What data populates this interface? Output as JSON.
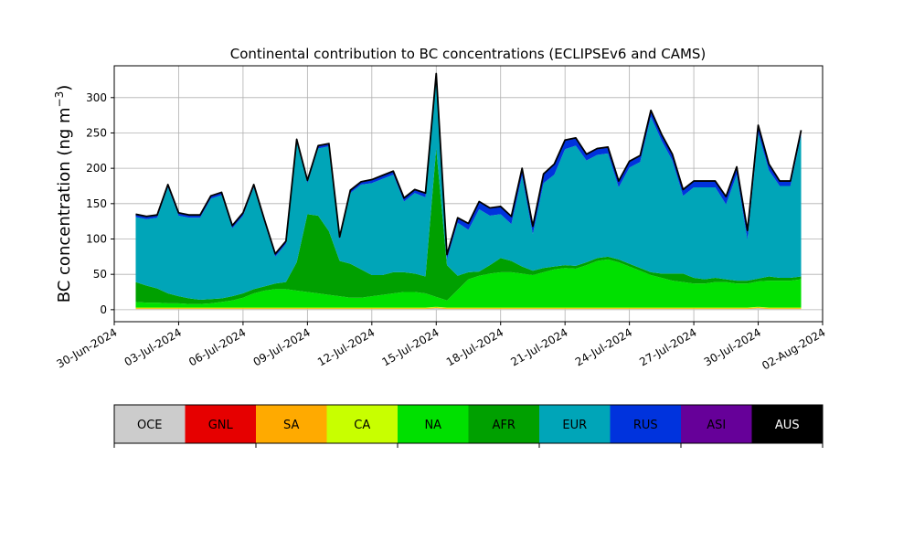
{
  "chart_data": {
    "type": "area",
    "stacked": true,
    "title": "Continental contribution to BC concentrations (ECLIPSEv6 and CAMS)",
    "ylabel": "BC concentration (ng m",
    "ylabel_sup": "−3",
    "ylabel_close": ")",
    "xlabel": "",
    "grid": true,
    "ylim": [
      -17,
      345
    ],
    "xlim": [
      "2024-06-30",
      "2024-08-02"
    ],
    "yticks": [
      0,
      50,
      100,
      150,
      200,
      250,
      300
    ],
    "ytick_labels": [
      "0",
      "50",
      "100",
      "150",
      "200",
      "250",
      "300"
    ],
    "xticks": [
      "2024-06-30",
      "2024-07-03",
      "2024-07-06",
      "2024-07-09",
      "2024-07-12",
      "2024-07-15",
      "2024-07-18",
      "2024-07-21",
      "2024-07-24",
      "2024-07-27",
      "2024-07-30",
      "2024-08-02"
    ],
    "xtick_labels": [
      "30-Jun-2024",
      "03-Jul-2024",
      "06-Jul-2024",
      "09-Jul-2024",
      "12-Jul-2024",
      "15-Jul-2024",
      "18-Jul-2024",
      "21-Jul-2024",
      "24-Jul-2024",
      "27-Jul-2024",
      "30-Jul-2024",
      "02-Aug-2024"
    ],
    "x": [
      "2024-07-01",
      "2024-07-01T12:00",
      "2024-07-02",
      "2024-07-02T12:00",
      "2024-07-03",
      "2024-07-03T12:00",
      "2024-07-04",
      "2024-07-04T12:00",
      "2024-07-05",
      "2024-07-05T12:00",
      "2024-07-06",
      "2024-07-06T12:00",
      "2024-07-07",
      "2024-07-07T12:00",
      "2024-07-08",
      "2024-07-08T12:00",
      "2024-07-09",
      "2024-07-09T12:00",
      "2024-07-10",
      "2024-07-10T12:00",
      "2024-07-11",
      "2024-07-11T12:00",
      "2024-07-12",
      "2024-07-12T12:00",
      "2024-07-13",
      "2024-07-13T12:00",
      "2024-07-14",
      "2024-07-14T12:00",
      "2024-07-15",
      "2024-07-15T12:00",
      "2024-07-16",
      "2024-07-16T12:00",
      "2024-07-17",
      "2024-07-17T12:00",
      "2024-07-18",
      "2024-07-18T12:00",
      "2024-07-19",
      "2024-07-19T12:00",
      "2024-07-20",
      "2024-07-20T12:00",
      "2024-07-21",
      "2024-07-21T12:00",
      "2024-07-22",
      "2024-07-22T12:00",
      "2024-07-23",
      "2024-07-23T12:00",
      "2024-07-24",
      "2024-07-24T12:00",
      "2024-07-25",
      "2024-07-25T12:00",
      "2024-07-26",
      "2024-07-26T12:00",
      "2024-07-27",
      "2024-07-27T12:00",
      "2024-07-28",
      "2024-07-28T12:00",
      "2024-07-29",
      "2024-07-29T12:00",
      "2024-07-30",
      "2024-07-30T12:00",
      "2024-07-31",
      "2024-07-31T12:00",
      "2024-08-01"
    ],
    "series": [
      {
        "name": "OCE",
        "color": "#cccccc",
        "values": [
          1,
          1,
          1,
          1,
          1,
          1,
          1,
          1,
          1,
          1,
          1,
          1,
          1,
          1,
          1,
          1,
          1,
          1,
          1,
          1,
          1,
          1,
          1,
          1,
          1,
          1,
          1,
          1,
          2,
          1,
          1,
          1,
          1,
          1,
          1,
          1,
          1,
          1,
          1,
          1,
          1,
          1,
          1,
          1,
          1,
          1,
          1,
          1,
          1,
          1,
          1,
          1,
          1,
          1,
          1,
          1,
          1,
          1,
          2,
          1,
          1,
          1,
          1
        ]
      },
      {
        "name": "GNL",
        "color": "#e60000",
        "values": [
          0,
          0,
          0,
          0,
          0,
          0,
          0,
          0,
          0,
          0,
          0,
          0,
          0,
          0,
          0,
          0,
          0,
          0,
          0,
          0,
          0,
          0,
          0,
          0,
          0,
          0,
          0,
          0,
          0,
          0,
          0,
          0,
          0,
          0,
          0,
          0,
          0,
          0,
          0,
          0,
          0,
          0,
          0,
          0,
          0,
          0,
          0,
          0,
          0,
          0,
          0,
          0,
          0,
          0,
          0,
          0,
          0,
          0,
          0,
          0,
          0,
          0,
          0
        ]
      },
      {
        "name": "SA",
        "color": "#ffaa00",
        "values": [
          1,
          1,
          1,
          1,
          1,
          1,
          1,
          1,
          1,
          1,
          1,
          1,
          1,
          1,
          1,
          1,
          1,
          1,
          1,
          1,
          1,
          1,
          1,
          1,
          1,
          1,
          1,
          1,
          1,
          1,
          1,
          1,
          1,
          1,
          1,
          1,
          1,
          1,
          1,
          1,
          1,
          1,
          1,
          1,
          1,
          1,
          1,
          1,
          1,
          1,
          1,
          1,
          1,
          1,
          1,
          1,
          1,
          1,
          1,
          1,
          1,
          1,
          1
        ]
      },
      {
        "name": "CA",
        "color": "#c8ff00",
        "values": [
          1,
          1,
          1,
          1,
          1,
          1,
          1,
          1,
          1,
          1,
          1,
          1,
          1,
          1,
          1,
          1,
          1,
          1,
          1,
          1,
          1,
          1,
          1,
          1,
          1,
          1,
          1,
          1,
          1,
          1,
          1,
          1,
          1,
          1,
          1,
          1,
          1,
          1,
          1,
          1,
          1,
          1,
          1,
          1,
          1,
          1,
          1,
          1,
          1,
          1,
          1,
          1,
          1,
          1,
          1,
          1,
          1,
          1,
          1,
          1,
          1,
          1,
          1
        ]
      },
      {
        "name": "NA",
        "color": "#00e000",
        "values": [
          8,
          7,
          7,
          6,
          6,
          5,
          5,
          6,
          8,
          10,
          14,
          20,
          24,
          26,
          26,
          24,
          22,
          20,
          18,
          16,
          14,
          14,
          16,
          18,
          20,
          22,
          22,
          20,
          14,
          10,
          25,
          40,
          45,
          48,
          50,
          50,
          48,
          46,
          50,
          54,
          56,
          55,
          60,
          66,
          68,
          64,
          58,
          52,
          46,
          42,
          38,
          36,
          34,
          34,
          36,
          36,
          34,
          34,
          36,
          38,
          38,
          38,
          40
        ]
      },
      {
        "name": "AFR",
        "color": "#00a000",
        "values": [
          28,
          24,
          20,
          14,
          10,
          8,
          6,
          6,
          5,
          6,
          6,
          6,
          6,
          8,
          10,
          40,
          110,
          110,
          90,
          50,
          48,
          40,
          30,
          28,
          30,
          28,
          26,
          24,
          210,
          50,
          20,
          10,
          6,
          12,
          20,
          16,
          10,
          6,
          6,
          4,
          4,
          4,
          4,
          4,
          4,
          4,
          4,
          4,
          4,
          6,
          10,
          12,
          8,
          6,
          6,
          4,
          4,
          4,
          4,
          6,
          4,
          4,
          4
        ]
      },
      {
        "name": "EUR",
        "color": "#00a5b8",
        "values": [
          92,
          94,
          100,
          150,
          114,
          114,
          116,
          142,
          146,
          96,
          110,
          144,
          90,
          38,
          54,
          170,
          44,
          95,
          120,
          30,
          100,
          120,
          130,
          136,
          138,
          100,
          114,
          112,
          100,
          8,
          75,
          60,
          88,
          70,
          62,
          52,
          128,
          52,
          120,
          130,
          164,
          170,
          144,
          146,
          146,
          102,
          136,
          150,
          220,
          188,
          160,
          110,
          128,
          130,
          128,
          106,
          150,
          58,
          206,
          150,
          130,
          130,
          200
        ]
      },
      {
        "name": "RUS",
        "color": "#0033dd",
        "values": [
          3,
          3,
          3,
          3,
          3,
          3,
          3,
          3,
          3,
          3,
          3,
          3,
          3,
          3,
          3,
          3,
          3,
          3,
          3,
          3,
          3,
          3,
          4,
          4,
          4,
          4,
          4,
          5,
          5,
          6,
          6,
          8,
          10,
          10,
          10,
          10,
          10,
          10,
          12,
          14,
          12,
          10,
          8,
          8,
          8,
          8,
          8,
          8,
          8,
          8,
          8,
          8,
          8,
          8,
          8,
          10,
          10,
          12,
          10,
          8,
          6,
          6,
          6
        ]
      },
      {
        "name": "ASI",
        "color": "#660099",
        "values": [
          1,
          1,
          1,
          1,
          1,
          1,
          1,
          1,
          1,
          1,
          1,
          1,
          1,
          1,
          1,
          1,
          1,
          1,
          1,
          1,
          1,
          1,
          1,
          1,
          1,
          1,
          1,
          1,
          1,
          1,
          1,
          1,
          1,
          1,
          1,
          1,
          1,
          1,
          1,
          1,
          1,
          1,
          1,
          1,
          1,
          1,
          1,
          1,
          1,
          1,
          1,
          1,
          1,
          1,
          1,
          1,
          1,
          1,
          1,
          1,
          1,
          1,
          1
        ]
      },
      {
        "name": "AUS",
        "color": "#000000",
        "values": [
          0,
          0,
          0,
          0,
          0,
          0,
          0,
          0,
          0,
          0,
          0,
          0,
          0,
          0,
          0,
          0,
          0,
          0,
          0,
          0,
          0,
          0,
          0,
          0,
          0,
          0,
          0,
          0,
          0,
          0,
          0,
          0,
          0,
          0,
          0,
          0,
          0,
          0,
          0,
          0,
          0,
          0,
          0,
          0,
          0,
          0,
          0,
          0,
          0,
          0,
          0,
          0,
          0,
          0,
          0,
          0,
          0,
          0,
          0,
          0,
          0,
          0,
          0
        ]
      }
    ],
    "total_line_color": "#000000",
    "legend_placement": "bottom colorbar"
  }
}
